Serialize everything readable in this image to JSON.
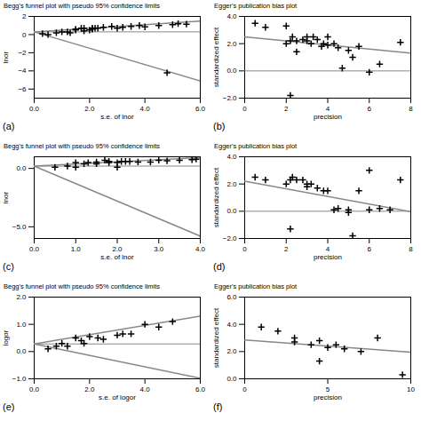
{
  "chart_data": [
    {
      "type": "scatter",
      "title": "Begg's funnel plot with pseudo 95% confidence limits",
      "xlabel": "s.e. of lnor",
      "ylabel": "lnor",
      "annotation": "(a)",
      "xlim": [
        0,
        6
      ],
      "ylim": [
        -7,
        2
      ],
      "xticks": [
        0,
        2,
        4,
        6
      ],
      "yticks": [
        -6,
        -4,
        -2,
        0,
        2
      ],
      "marker": "plus",
      "hline": 0.3,
      "lines": [
        {
          "x": [
            0,
            6
          ],
          "y": [
            0.3,
            1.5
          ]
        },
        {
          "x": [
            0,
            6
          ],
          "y": [
            0.3,
            -5.1
          ]
        }
      ],
      "x": [
        0.3,
        0.5,
        0.8,
        1.0,
        1.2,
        1.3,
        1.5,
        1.5,
        1.7,
        1.8,
        1.8,
        2.0,
        2.1,
        2.1,
        2.2,
        2.3,
        2.5,
        2.8,
        3.0,
        3.2,
        3.5,
        3.8,
        4.0,
        4.5,
        5.0,
        5.2,
        5.5,
        4.8
      ],
      "values": [
        0.1,
        0.0,
        0.2,
        0.3,
        0.3,
        0.2,
        0.5,
        0.6,
        0.7,
        0.4,
        0.7,
        0.5,
        0.6,
        0.7,
        0.7,
        0.7,
        0.8,
        0.9,
        0.7,
        0.8,
        0.9,
        1.0,
        0.85,
        1.0,
        1.1,
        1.2,
        1.15,
        -4.2
      ]
    },
    {
      "type": "scatter",
      "title": "Egger's publication bias plot",
      "xlabel": "precision",
      "ylabel": "standardized effect",
      "annotation": "(b)",
      "xlim": [
        0,
        8
      ],
      "ylim": [
        -2,
        4
      ],
      "xticks": [
        0,
        2,
        4,
        6,
        8
      ],
      "yticks": [
        -2,
        0,
        2,
        4
      ],
      "marker": "plus",
      "hline": 0,
      "lines": [
        {
          "x": [
            0,
            8
          ],
          "y": [
            2.5,
            1.3
          ]
        }
      ],
      "x": [
        0.5,
        1.0,
        2.0,
        2.0,
        2.2,
        2.3,
        2.5,
        2.5,
        2.8,
        3.0,
        3.0,
        3.2,
        3.3,
        3.5,
        3.7,
        3.8,
        4.0,
        4.0,
        4.3,
        4.5,
        5.0,
        5.2,
        5.5,
        6.0,
        6.5,
        7.5,
        2.2,
        4.7
      ],
      "values": [
        3.5,
        3.2,
        3.3,
        2.0,
        2.2,
        2.5,
        2.2,
        1.4,
        2.3,
        2.2,
        2.5,
        2.0,
        2.5,
        2.3,
        1.8,
        2.0,
        2.5,
        1.9,
        2.0,
        1.7,
        1.5,
        1.0,
        1.8,
        -0.1,
        0.5,
        2.1,
        -1.8,
        0.2
      ]
    },
    {
      "type": "scatter",
      "title": "Begg's funnel plot with pseudo 95% confidence limits",
      "xlabel": "s.e. of lnor",
      "ylabel": "lnor",
      "annotation": "(c)",
      "xlim": [
        0,
        4
      ],
      "ylim": [
        -6,
        1
      ],
      "xticks": [
        0,
        1,
        2,
        3,
        4
      ],
      "yticks": [
        -5,
        0
      ],
      "marker": "plus",
      "hline": 0.2,
      "lines": [
        {
          "x": [
            0,
            4
          ],
          "y": [
            0.2,
            0.92
          ]
        },
        {
          "x": [
            0,
            4
          ],
          "y": [
            0.2,
            -5.8
          ]
        }
      ],
      "x": [
        0.5,
        0.8,
        1.0,
        1.0,
        1.2,
        1.3,
        1.5,
        1.5,
        1.7,
        1.8,
        1.8,
        2.0,
        2.0,
        2.1,
        2.2,
        2.3,
        2.5,
        2.8,
        3.0,
        3.2,
        3.5,
        3.8,
        3.9
      ],
      "values": [
        0.1,
        0.2,
        0.1,
        0.5,
        0.4,
        0.5,
        0.55,
        0.4,
        0.7,
        0.5,
        0.6,
        0.5,
        0.1,
        0.6,
        0.6,
        0.6,
        0.55,
        0.55,
        0.7,
        0.65,
        0.7,
        0.75,
        0.8
      ]
    },
    {
      "type": "scatter",
      "title": "Egger's publication bias plot",
      "xlabel": "precision",
      "ylabel": "standardized effect",
      "annotation": "(d)",
      "xlim": [
        0,
        8
      ],
      "ylim": [
        -2,
        4
      ],
      "xticks": [
        0,
        2,
        4,
        6,
        8
      ],
      "yticks": [
        -2,
        0,
        2,
        4
      ],
      "marker": "plus",
      "hline": 0,
      "lines": [
        {
          "x": [
            0,
            8
          ],
          "y": [
            2.2,
            -0.04
          ]
        }
      ],
      "x": [
        0.5,
        1.0,
        2.0,
        2.2,
        2.3,
        2.5,
        2.8,
        3.0,
        3.0,
        3.2,
        3.5,
        3.8,
        4.0,
        4.3,
        4.5,
        5.0,
        5.0,
        5.5,
        6.0,
        6.5,
        7.0,
        7.5,
        2.2,
        5.2,
        6.0
      ],
      "values": [
        2.5,
        2.3,
        2.0,
        2.3,
        2.5,
        2.3,
        2.3,
        1.8,
        2.0,
        2.0,
        1.7,
        1.5,
        1.5,
        0.1,
        0.2,
        0.1,
        -0.1,
        1.5,
        0.1,
        0.2,
        0.1,
        2.3,
        -1.3,
        -1.8,
        3.0
      ]
    },
    {
      "type": "scatter",
      "title": "Begg's funnel plot with pseudo 95% confidence limits",
      "xlabel": "s.e. of logor",
      "ylabel": "logor",
      "annotation": "(e)",
      "xlim": [
        0,
        6
      ],
      "ylim": [
        -1,
        2
      ],
      "xticks": [
        0,
        2,
        4,
        6
      ],
      "yticks": [
        -1,
        0,
        1,
        2
      ],
      "marker": "plus",
      "hline": 0.28,
      "lines": [
        {
          "x": [
            0,
            6
          ],
          "y": [
            0.28,
            1.3
          ]
        },
        {
          "x": [
            0,
            6
          ],
          "y": [
            0.28,
            -0.98
          ]
        }
      ],
      "x": [
        0.5,
        0.8,
        1.0,
        1.2,
        1.5,
        1.7,
        1.8,
        2.0,
        2.3,
        2.5,
        3.0,
        3.2,
        3.5,
        4.0,
        4.5,
        5.0
      ],
      "values": [
        0.1,
        0.2,
        0.3,
        0.2,
        0.5,
        0.4,
        0.3,
        0.55,
        0.5,
        0.45,
        0.6,
        0.65,
        0.65,
        1.0,
        0.9,
        1.1
      ]
    },
    {
      "type": "scatter",
      "title": "Egger's publication bias plot",
      "xlabel": "precision",
      "ylabel": "standardized effect",
      "annotation": "(f)",
      "xlim": [
        0,
        10
      ],
      "ylim": [
        0,
        6
      ],
      "xticks": [
        0,
        5,
        10
      ],
      "yticks": [
        0,
        2,
        4,
        6
      ],
      "marker": "plus",
      "lines": [
        {
          "x": [
            0,
            10
          ],
          "y": [
            2.85,
            1.95
          ]
        }
      ],
      "x": [
        1.0,
        2.0,
        3.0,
        4.0,
        4.5,
        5.0,
        5.5,
        6.0,
        7.0,
        8.0,
        9.5,
        3.0,
        4.5
      ],
      "values": [
        3.8,
        3.5,
        3.0,
        2.5,
        2.8,
        2.3,
        2.5,
        2.2,
        2.0,
        3.0,
        0.3,
        2.7,
        1.3
      ]
    }
  ]
}
